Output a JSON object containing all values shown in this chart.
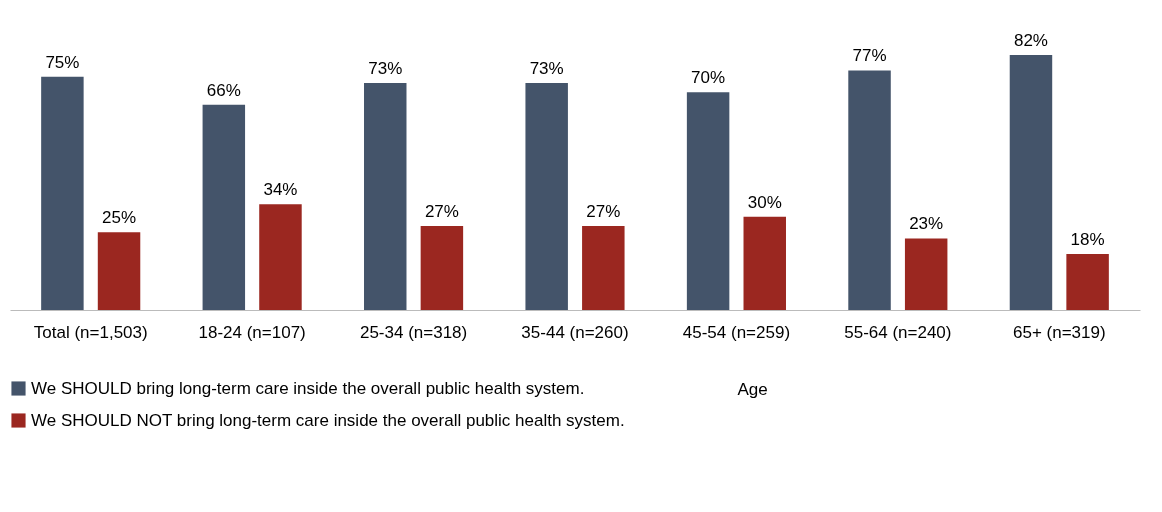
{
  "chart_data": {
    "type": "bar",
    "categories": [
      "Total (n=1,503)",
      "18-24 (n=107)",
      "25-34 (n=318)",
      "35-44 (n=260)",
      "45-54 (n=259)",
      "55-64 (n=240)",
      "65+ (n=319)"
    ],
    "series": [
      {
        "name": "We SHOULD bring long-term care inside the overall public health system.",
        "color": "#44546a",
        "values": [
          75,
          66,
          73,
          73,
          70,
          77,
          82
        ],
        "value_labels": [
          "75%",
          "66%",
          "73%",
          "73%",
          "70%",
          "77%",
          "82%"
        ]
      },
      {
        "name": "We SHOULD NOT bring long-term care inside the overall public health system.",
        "color": "#9b2720",
        "values": [
          25,
          34,
          27,
          27,
          30,
          23,
          18
        ],
        "value_labels": [
          "25%",
          "34%",
          "27%",
          "27%",
          "30%",
          "23%",
          "18%"
        ]
      }
    ],
    "annotations": [
      "Age"
    ],
    "legend": "bottom",
    "grid": false
  }
}
